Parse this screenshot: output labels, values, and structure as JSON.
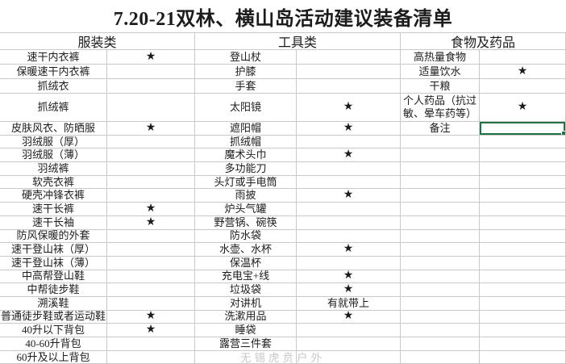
{
  "title": "7.20-21双林、横山岛活动建议装备清单",
  "watermark": "无锡虎贲户外",
  "colors": {
    "grid_line": "#c9c9c9",
    "text": "#1c1c1c",
    "selection_green": "#217346",
    "watermark_gray": "#c4c4c4"
  },
  "table": {
    "groups": [
      {
        "header": "服装类"
      },
      {
        "header": "工具类"
      },
      {
        "header": "食物及药品"
      }
    ],
    "star_char": "★",
    "rows": [
      {
        "cells": [
          "速干内衣裤",
          "★",
          "登山杖",
          "",
          "高热量食物",
          ""
        ]
      },
      {
        "cells": [
          "保暖速干内衣裤",
          "",
          "护膝",
          "",
          "适量饮水",
          "★"
        ]
      },
      {
        "cells": [
          "抓绒衣",
          "",
          "手套",
          "",
          "干粮",
          ""
        ]
      },
      {
        "cells": [
          "抓绒裤",
          "",
          "太阳镜",
          "★",
          "个人药品（抗过\n敏、晕车药等）",
          "★"
        ]
      },
      {
        "cells": [
          "皮肤风衣、防晒服",
          "★",
          "遮阳帽",
          "★",
          "备注",
          ""
        ],
        "selected": 5
      },
      {
        "cells": [
          "羽绒服（厚）",
          "",
          "抓绒帽",
          "",
          "",
          ""
        ]
      },
      {
        "cells": [
          "羽绒服（薄）",
          "",
          "魔术头巾",
          "★",
          "",
          ""
        ]
      },
      {
        "cells": [
          "羽绒裤",
          "",
          "多功能刀",
          "",
          "",
          ""
        ]
      },
      {
        "cells": [
          "软壳衣裤",
          "",
          "头灯或手电筒",
          "",
          "",
          ""
        ]
      },
      {
        "cells": [
          "硬壳冲锋衣裤",
          "",
          "雨披",
          "★",
          "",
          ""
        ]
      },
      {
        "cells": [
          "速干长裤",
          "★",
          "炉头气罐",
          "",
          "",
          ""
        ]
      },
      {
        "cells": [
          "速干长袖",
          "★",
          "野营锅、碗筷",
          "",
          "",
          ""
        ]
      },
      {
        "cells": [
          "防风保暖的外套",
          "",
          "防水袋",
          "",
          "",
          ""
        ]
      },
      {
        "cells": [
          "速干登山袜（厚）",
          "",
          "水壶、水杯",
          "★",
          "",
          ""
        ]
      },
      {
        "cells": [
          "速干登山袜（薄）",
          "",
          "保温杯",
          "",
          "",
          ""
        ]
      },
      {
        "cells": [
          "中高帮登山鞋",
          "",
          "充电宝+线",
          "★",
          "",
          ""
        ]
      },
      {
        "cells": [
          "中帮徒步鞋",
          "",
          "垃圾袋",
          "★",
          "",
          ""
        ]
      },
      {
        "cells": [
          "溯溪鞋",
          "",
          "对讲机",
          "有就带上",
          "",
          ""
        ]
      },
      {
        "cells": [
          "普通徒步鞋或者运动鞋",
          "★",
          "洗漱用品",
          "★",
          "",
          ""
        ]
      },
      {
        "cells": [
          "40升以下背包",
          "★",
          "睡袋",
          "",
          "",
          ""
        ]
      },
      {
        "cells": [
          "40-60升背包",
          "",
          "露营三件套",
          "",
          "",
          ""
        ]
      },
      {
        "cells": [
          "60升及以上背包",
          "",
          "",
          "",
          "",
          ""
        ]
      }
    ]
  }
}
